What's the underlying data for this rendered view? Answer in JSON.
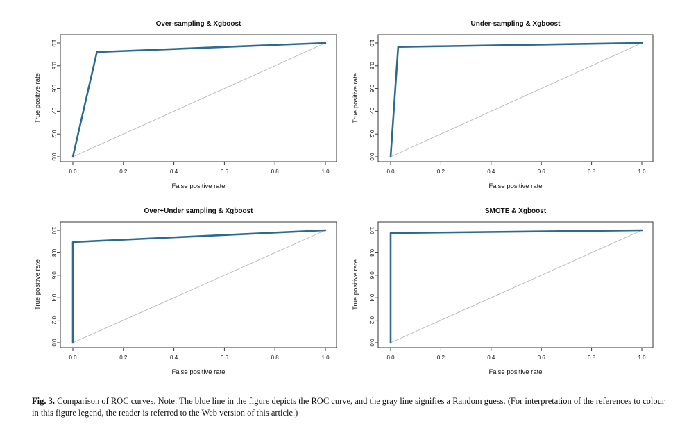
{
  "chart_data": [
    {
      "type": "line",
      "title": "Over-sampling & Xgboost",
      "xlabel": "False positive rate",
      "ylabel": "True positive rate",
      "xlim": [
        0,
        1
      ],
      "ylim": [
        0,
        1
      ],
      "xticks": [
        "0.0",
        "0.2",
        "0.4",
        "0.6",
        "0.8",
        "1.0"
      ],
      "yticks": [
        "0.0",
        "0.2",
        "0.4",
        "0.6",
        "0.8",
        "1.0"
      ],
      "grid": false,
      "series": [
        {
          "values": [
            [
              0.0,
              0.0
            ],
            [
              0.095,
              0.92
            ],
            [
              1.0,
              1.0
            ]
          ],
          "color": "#2c6a8f"
        },
        {
          "values": [
            [
              0.0,
              0.0
            ],
            [
              1.0,
              1.0
            ]
          ],
          "color": "#b5b5b5"
        }
      ]
    },
    {
      "type": "line",
      "title": "Under-sampling & Xgboost",
      "xlabel": "False positive rate",
      "ylabel": "True positive rate",
      "xlim": [
        0,
        1
      ],
      "ylim": [
        0,
        1
      ],
      "xticks": [
        "0.0",
        "0.2",
        "0.4",
        "0.6",
        "0.8",
        "1.0"
      ],
      "yticks": [
        "0.0",
        "0.2",
        "0.4",
        "0.6",
        "0.8",
        "1.0"
      ],
      "grid": false,
      "series": [
        {
          "values": [
            [
              0.0,
              0.0
            ],
            [
              0.03,
              0.965
            ],
            [
              1.0,
              1.0
            ]
          ],
          "color": "#2c6a8f"
        },
        {
          "values": [
            [
              0.0,
              0.0
            ],
            [
              1.0,
              1.0
            ]
          ],
          "color": "#b5b5b5"
        }
      ]
    },
    {
      "type": "line",
      "title": "Over+Under sampling & Xgboost",
      "xlabel": "False positive rate",
      "ylabel": "True positive rate",
      "xlim": [
        0,
        1
      ],
      "ylim": [
        0,
        1
      ],
      "xticks": [
        "0.0",
        "0.2",
        "0.4",
        "0.6",
        "0.8",
        "1.0"
      ],
      "yticks": [
        "0.0",
        "0.2",
        "0.4",
        "0.6",
        "0.8",
        "1.0"
      ],
      "grid": false,
      "series": [
        {
          "values": [
            [
              0.0,
              0.0
            ],
            [
              0.0,
              0.895
            ],
            [
              1.0,
              1.0
            ]
          ],
          "color": "#2c6a8f"
        },
        {
          "values": [
            [
              0.0,
              0.0
            ],
            [
              1.0,
              1.0
            ]
          ],
          "color": "#b5b5b5"
        }
      ]
    },
    {
      "type": "line",
      "title": "SMOTE & Xgboost",
      "xlabel": "False positive rate",
      "ylabel": "True positive rate",
      "xlim": [
        0,
        1
      ],
      "ylim": [
        0,
        1
      ],
      "xticks": [
        "0.0",
        "0.2",
        "0.4",
        "0.6",
        "0.8",
        "1.0"
      ],
      "yticks": [
        "0.0",
        "0.2",
        "0.4",
        "0.6",
        "0.8",
        "1.0"
      ],
      "grid": false,
      "series": [
        {
          "values": [
            [
              0.0,
              0.0
            ],
            [
              0.0,
              0.975
            ],
            [
              1.0,
              1.0
            ]
          ],
          "color": "#2c6a8f"
        },
        {
          "values": [
            [
              0.0,
              0.0
            ],
            [
              1.0,
              1.0
            ]
          ],
          "color": "#b5b5b5"
        }
      ]
    }
  ],
  "caption": {
    "label": "Fig. 3.",
    "text": " Comparison of ROC curves. Note: The blue line in the figure depicts the ROC curve, and the gray line signifies a Random guess. (For interpretation of the references to colour in this figure legend, the reader is referred to the Web version of this article.)"
  }
}
